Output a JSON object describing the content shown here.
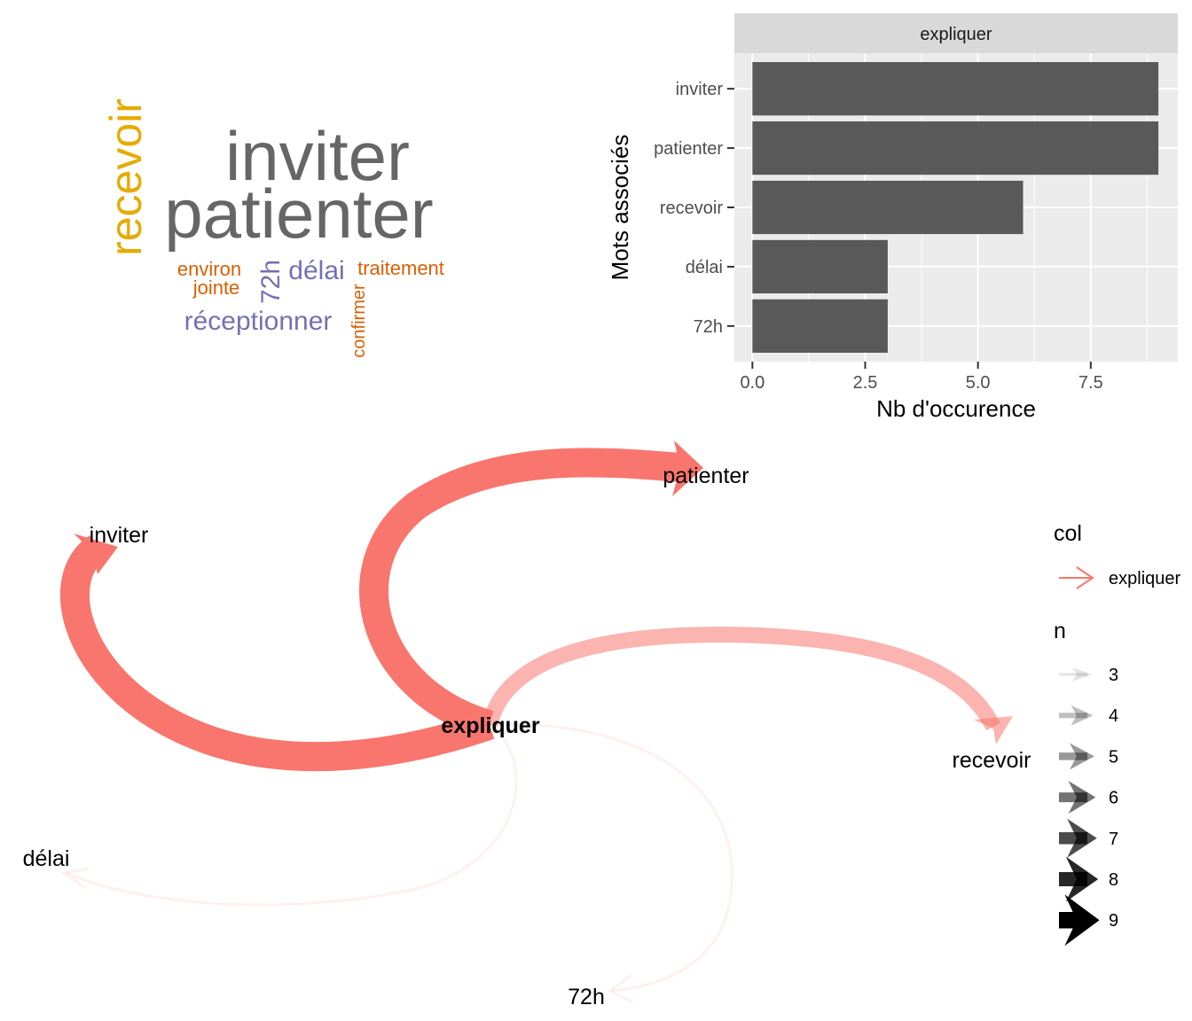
{
  "wordcloud": {
    "words": [
      {
        "text": "inviter",
        "color": "#666666"
      },
      {
        "text": "patienter",
        "color": "#666666"
      },
      {
        "text": "recevoir",
        "color": "#E6AB02"
      },
      {
        "text": "environ",
        "color": "#D95F02"
      },
      {
        "text": "jointe",
        "color": "#D95F02"
      },
      {
        "text": "72h",
        "color": "#7570B3"
      },
      {
        "text": "délai",
        "color": "#7570B3"
      },
      {
        "text": "traitement",
        "color": "#D95F02"
      },
      {
        "text": "réceptionner",
        "color": "#7570B3"
      },
      {
        "text": "confirmer",
        "color": "#D95F02"
      }
    ]
  },
  "chart_data": [
    {
      "type": "bar",
      "orientation": "horizontal",
      "facet_label": "expliquer",
      "categories": [
        "inviter",
        "patienter",
        "recevoir",
        "délai",
        "72h"
      ],
      "values": [
        9,
        9,
        6,
        3,
        3
      ],
      "xlabel": "Nb d'occurence",
      "ylabel": "Mots associés",
      "xlim": [
        0,
        9
      ],
      "x_ticks": [
        "0.0",
        "2.5",
        "5.0",
        "7.5"
      ],
      "grid": true,
      "bar_color": "#595959"
    },
    {
      "type": "network",
      "center": "expliquer",
      "edges": [
        {
          "from": "expliquer",
          "to": "patienter",
          "n": 9
        },
        {
          "from": "expliquer",
          "to": "inviter",
          "n": 9
        },
        {
          "from": "expliquer",
          "to": "recevoir",
          "n": 6
        },
        {
          "from": "expliquer",
          "to": "délai",
          "n": 3
        },
        {
          "from": "expliquer",
          "to": "72h",
          "n": 3
        }
      ],
      "edge_color": "#F8766D",
      "legend": {
        "col_title": "col",
        "col_entries": [
          "expliquer"
        ],
        "n_title": "n",
        "n_entries": [
          "3",
          "4",
          "5",
          "6",
          "7",
          "8",
          "9"
        ]
      }
    }
  ]
}
